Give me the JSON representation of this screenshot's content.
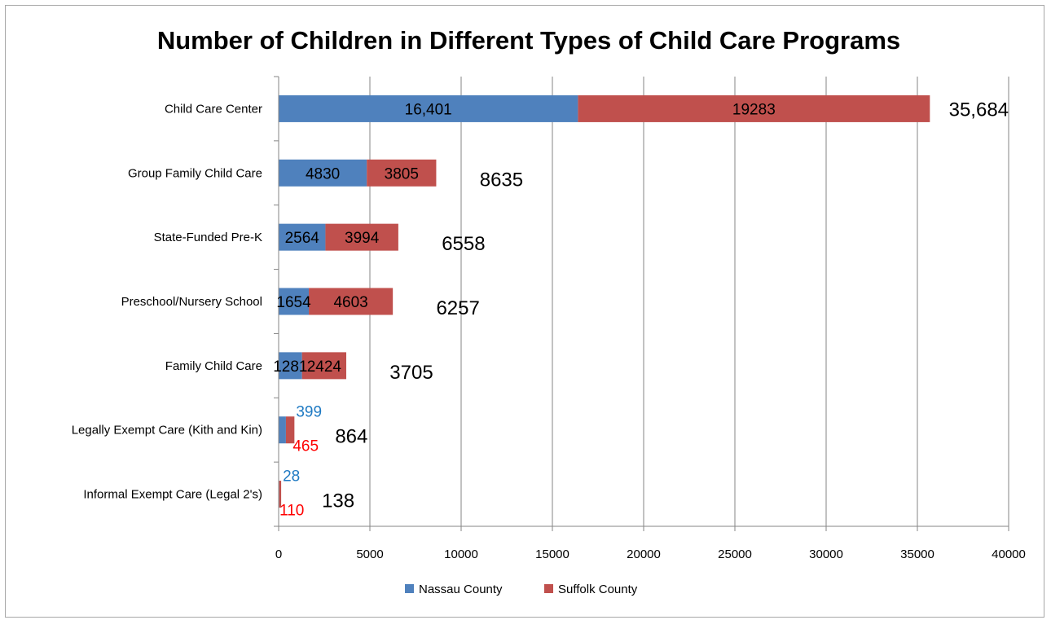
{
  "chart_data": {
    "type": "bar",
    "orientation": "horizontal",
    "stacked": true,
    "title": "Number of Children in Different Types of Child Care Programs",
    "xlabel": "",
    "ylabel": "",
    "xlim": [
      0,
      40000
    ],
    "x_ticks": [
      "0",
      "5000",
      "10000",
      "15000",
      "20000",
      "25000",
      "30000",
      "35000",
      "40000"
    ],
    "grid": "vertical",
    "legend_position": "bottom",
    "categories": [
      "Child Care Center",
      "Group Family Child Care",
      "State-Funded Pre-K",
      "Preschool/Nursery School",
      "Family Child Care",
      "Legally Exempt Care (Kith and Kin)",
      "Informal Exempt Care (Legal 2's)"
    ],
    "series": [
      {
        "name": "Nassau County",
        "color": "#4f81bd",
        "values": [
          16401,
          4830,
          2564,
          1654,
          1281,
          399,
          28
        ],
        "data_labels": [
          "16,401",
          "4830",
          "2564",
          "1654",
          "1281",
          "399",
          "28"
        ]
      },
      {
        "name": "Suffolk County",
        "color": "#c0504d",
        "values": [
          19283,
          3805,
          3994,
          4603,
          2424,
          465,
          110
        ],
        "data_labels": [
          "19283",
          "3805",
          "3994",
          "4603",
          "2424",
          "465",
          "110"
        ]
      }
    ],
    "totals": [
      "35,684",
      "8635",
      "6558",
      "6257",
      "3705",
      "864",
      "138"
    ],
    "small_label_colors": {
      "nassau": "#1f7ac3",
      "suffolk": "#ff0000"
    }
  }
}
